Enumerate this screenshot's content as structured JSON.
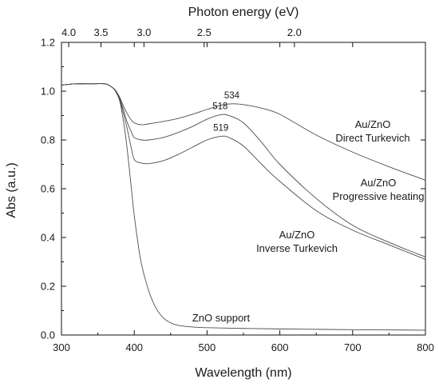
{
  "chart_data": {
    "type": "line",
    "xlabel": "Wavelength (nm)",
    "ylabel": "Abs (a.u.)",
    "top_xlabel": "Photon energy (eV)",
    "xlim": [
      300,
      800
    ],
    "ylim": [
      0.0,
      1.2
    ],
    "x_ticks": [
      "300",
      "400",
      "500",
      "600",
      "700",
      "800"
    ],
    "y_ticks": [
      "0.0",
      "0.2",
      "0.4",
      "0.6",
      "0.8",
      "1.0",
      "1.2"
    ],
    "top_ticks": [
      {
        "energy": 4.0,
        "label": "4.0"
      },
      {
        "energy": 3.5,
        "label": "3.5"
      },
      {
        "energy": 3.0,
        "label": "3.0"
      },
      {
        "energy": 2.5,
        "label": "2.5"
      },
      {
        "energy": 2.0,
        "label": "2.0"
      }
    ],
    "grid": false,
    "series": [
      {
        "label_lines": [
          "Au/ZnO",
          "Direct Turkevich"
        ],
        "x": [
          300,
          320,
          340,
          360,
          370,
          375,
          380,
          385,
          390,
          395,
          400,
          410,
          420,
          440,
          460,
          480,
          500,
          520,
          534,
          550,
          575,
          600,
          650,
          700,
          750,
          800
        ],
        "y": [
          1.025,
          1.03,
          1.03,
          1.03,
          1.015,
          1.0,
          0.975,
          0.94,
          0.91,
          0.885,
          0.87,
          0.862,
          0.866,
          0.876,
          0.888,
          0.905,
          0.925,
          0.943,
          0.948,
          0.945,
          0.93,
          0.905,
          0.82,
          0.75,
          0.69,
          0.635
        ]
      },
      {
        "label_lines": [
          "Au/ZnO",
          "Progressive heating"
        ],
        "x": [
          300,
          320,
          340,
          360,
          370,
          375,
          380,
          385,
          390,
          395,
          400,
          410,
          420,
          440,
          460,
          480,
          500,
          518,
          530,
          550,
          575,
          600,
          650,
          700,
          750,
          800
        ],
        "y": [
          1.025,
          1.03,
          1.03,
          1.03,
          1.015,
          1.0,
          0.97,
          0.925,
          0.875,
          0.84,
          0.81,
          0.8,
          0.8,
          0.81,
          0.83,
          0.855,
          0.885,
          0.903,
          0.9,
          0.87,
          0.79,
          0.7,
          0.56,
          0.45,
          0.38,
          0.32
        ]
      },
      {
        "label_lines": [
          "Au/ZnO",
          "Inverse Turkevich"
        ],
        "x": [
          300,
          320,
          340,
          360,
          370,
          375,
          380,
          385,
          390,
          395,
          400,
          410,
          420,
          440,
          460,
          480,
          500,
          519,
          530,
          550,
          575,
          600,
          650,
          700,
          750,
          800
        ],
        "y": [
          1.025,
          1.03,
          1.03,
          1.03,
          1.015,
          1.0,
          0.965,
          0.91,
          0.85,
          0.78,
          0.72,
          0.705,
          0.703,
          0.715,
          0.74,
          0.77,
          0.8,
          0.815,
          0.81,
          0.775,
          0.7,
          0.63,
          0.51,
          0.43,
          0.37,
          0.31
        ]
      },
      {
        "label_lines": [
          "ZnO support"
        ],
        "x": [
          300,
          320,
          340,
          360,
          370,
          375,
          380,
          385,
          390,
          395,
          400,
          405,
          410,
          420,
          430,
          440,
          450,
          460,
          480,
          500,
          550,
          600,
          700,
          800
        ],
        "y": [
          1.025,
          1.03,
          1.03,
          1.03,
          1.015,
          0.995,
          0.96,
          0.88,
          0.77,
          0.63,
          0.49,
          0.38,
          0.29,
          0.18,
          0.11,
          0.07,
          0.05,
          0.04,
          0.033,
          0.03,
          0.027,
          0.025,
          0.022,
          0.02
        ]
      }
    ],
    "peak_annotations": [
      {
        "text": "534",
        "x": 534,
        "y": 0.948
      },
      {
        "text": "518",
        "x": 518,
        "y": 0.903
      },
      {
        "text": "519",
        "x": 519,
        "y": 0.815
      }
    ]
  }
}
